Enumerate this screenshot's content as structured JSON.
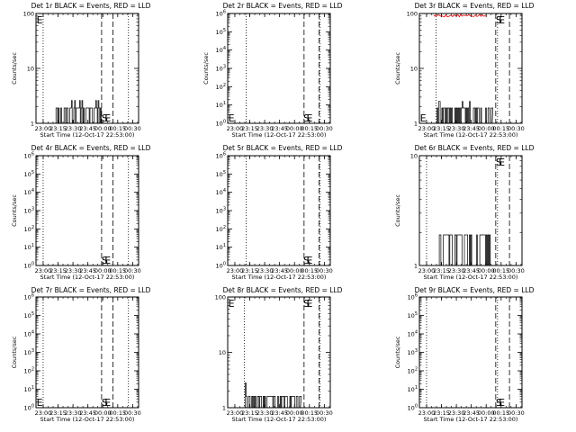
{
  "figure": {
    "background": "#ffffff",
    "event_color": "#000000",
    "lld_color": "#e00000"
  },
  "chart_data": [
    {
      "type": "line",
      "title": "Det 1r BLACK = Events, RED = LLD",
      "xlabel": "Start Time (12-Oct-17 22:53:00)",
      "ylabel": "Counts/sec",
      "xlim": [
        22.88,
        24.6
      ],
      "x_ticks": [
        23.0,
        23.25,
        23.5,
        23.75,
        24.0,
        24.25,
        24.5
      ],
      "x_tick_labels": [
        "23:00",
        "23:15",
        "23:30",
        "23:45",
        "00:00",
        "00:15",
        "00:30"
      ],
      "yscale": "log",
      "ylim": [
        1,
        100
      ],
      "y_tick_labels": [
        "1",
        "10",
        "100"
      ],
      "ylabel_show": true,
      "dotted_x": [
        23.0,
        24.43
      ],
      "dashed_x": [
        23.98,
        24.17
      ],
      "markers": [
        {
          "text": "E",
          "x": 22.89,
          "pos": "top"
        },
        {
          "text": "S",
          "x": 23.98,
          "pos": "bottom"
        },
        {
          "text": "E",
          "x": 24.03,
          "pos": "bottom"
        }
      ],
      "events": {
        "x_start": 23.16,
        "x_end": 23.97,
        "seed": 11,
        "base": 1.9,
        "high": 2.6,
        "high_rate": 0.06
      },
      "lld": null
    },
    {
      "type": "line",
      "title": "Det 2r BLACK = Events, RED = LLD",
      "xlabel": "Start Time (12-Oct-17 22:53:00)",
      "ylabel": "Counts/sec",
      "xlim": [
        22.88,
        24.6
      ],
      "x_ticks": [
        23.0,
        23.25,
        23.5,
        23.75,
        24.0,
        24.25,
        24.5
      ],
      "x_tick_labels": [
        "23:00",
        "23:15",
        "23:30",
        "23:45",
        "00:00",
        "00:15",
        "00:30"
      ],
      "yscale": "log",
      "ylim": [
        1,
        1000000
      ],
      "y_tick_labels": [
        "10^0",
        "10^1",
        "10^2",
        "10^3",
        "10^4",
        "10^5",
        "10^6"
      ],
      "ylabel_show": true,
      "dotted_x": [
        23.19,
        24.43
      ],
      "dashed_x": [
        24.16,
        24.41
      ],
      "markers": [
        {
          "text": "E",
          "x": 22.89,
          "pos": "bottom"
        },
        {
          "text": "S",
          "x": 24.15,
          "pos": "bottom"
        },
        {
          "text": "E",
          "x": 24.2,
          "pos": "bottom"
        }
      ],
      "events": null,
      "lld": null
    },
    {
      "type": "line",
      "title": "Det 3r BLACK = Events, RED = LLD",
      "xlabel": "Start Time (12-Oct-17 22:53:00)",
      "ylabel": "Counts/sec",
      "xlim": [
        22.88,
        24.6
      ],
      "x_ticks": [
        23.0,
        23.25,
        23.5,
        23.75,
        24.0,
        24.25,
        24.5
      ],
      "x_tick_labels": [
        "23:00",
        "23:15",
        "23:30",
        "23:45",
        "00:00",
        "00:15",
        "00:30"
      ],
      "yscale": "log",
      "ylim": [
        1,
        100
      ],
      "y_tick_labels": [
        "1",
        "10",
        "100"
      ],
      "ylabel_show": true,
      "dotted_x": [
        23.16,
        24.19
      ],
      "dashed_x": [
        24.16,
        24.39
      ],
      "markers": [
        {
          "text": "E",
          "x": 22.89,
          "pos": "bottom"
        },
        {
          "text": "S",
          "x": 24.16,
          "pos": "top"
        },
        {
          "text": "E",
          "x": 24.21,
          "pos": "top"
        }
      ],
      "events": {
        "x_start": 23.16,
        "x_end": 24.1,
        "seed": 37,
        "base": 1.9,
        "high": 2.5,
        "high_rate": 0.05
      },
      "lld": {
        "x_start": 23.12,
        "x_end": 24.02,
        "level": 98,
        "seed": 5
      }
    },
    {
      "type": "line",
      "title": "Det 4r BLACK = Events, RED = LLD",
      "xlabel": "Start Time (12-Oct-17 22:53:00)",
      "ylabel": "Counts/sec",
      "xlim": [
        22.88,
        24.6
      ],
      "x_ticks": [
        23.0,
        23.25,
        23.5,
        23.75,
        24.0,
        24.25,
        24.5
      ],
      "x_tick_labels": [
        "23:00",
        "23:15",
        "23:30",
        "23:45",
        "00:00",
        "00:15",
        "00:30"
      ],
      "yscale": "log",
      "ylim": [
        1,
        1000000
      ],
      "y_tick_labels": [
        "10^0",
        "10^1",
        "10^2",
        "10^3",
        "10^4",
        "10^5",
        "10^6"
      ],
      "ylabel_show": true,
      "dotted_x": [
        23.0,
        24.43
      ],
      "dashed_x": [
        23.98,
        24.17
      ],
      "markers": [
        {
          "text": "S",
          "x": 23.98,
          "pos": "bottom"
        },
        {
          "text": "E",
          "x": 24.03,
          "pos": "bottom"
        }
      ],
      "events": null,
      "lld": null
    },
    {
      "type": "line",
      "title": "Det 5r BLACK = Events, RED = LLD",
      "xlabel": "Start Time (12-Oct-17 22:53:00)",
      "ylabel": "Counts/sec",
      "xlim": [
        22.88,
        24.6
      ],
      "x_ticks": [
        23.0,
        23.25,
        23.5,
        23.75,
        24.0,
        24.25,
        24.5
      ],
      "x_tick_labels": [
        "23:00",
        "23:15",
        "23:30",
        "23:45",
        "00:00",
        "00:15",
        "00:30"
      ],
      "yscale": "log",
      "ylim": [
        1,
        1000000
      ],
      "y_tick_labels": [
        "10^0",
        "10^1",
        "10^2",
        "10^3",
        "10^4",
        "10^5",
        "10^6"
      ],
      "ylabel_show": false,
      "dotted_x": [
        23.19,
        24.43
      ],
      "dashed_x": [
        24.16,
        24.41
      ],
      "markers": [
        {
          "text": "S",
          "x": 24.15,
          "pos": "bottom"
        },
        {
          "text": "E",
          "x": 24.2,
          "pos": "bottom"
        }
      ],
      "events": null,
      "lld": null
    },
    {
      "type": "line",
      "title": "Det 6r BLACK = Events, RED = LLD",
      "xlabel": "Start Time (12-Oct-17 22:53:00)",
      "ylabel": "Counts/sec",
      "xlim": [
        22.88,
        24.6
      ],
      "x_ticks": [
        23.0,
        23.25,
        23.5,
        23.75,
        24.0,
        24.25,
        24.5
      ],
      "x_tick_labels": [
        "23:00",
        "23:15",
        "23:30",
        "23:45",
        "00:00",
        "00:15",
        "00:30"
      ],
      "yscale": "log",
      "ylim": [
        1,
        10
      ],
      "y_tick_labels": [
        "1",
        "10"
      ],
      "ylabel_show": true,
      "dotted_x": [
        23.0,
        24.19
      ],
      "dashed_x": [
        24.16,
        24.39
      ],
      "markers": [
        {
          "text": "S",
          "x": 24.16,
          "pos": "top"
        },
        {
          "text": "E",
          "x": 24.21,
          "pos": "top"
        }
      ],
      "events": {
        "x_start": 23.2,
        "x_end": 24.1,
        "seed": 73,
        "base": 1.9,
        "high": 2.0,
        "high_rate": 0.0
      },
      "lld": null
    },
    {
      "type": "line",
      "title": "Det 7r BLACK = Events, RED = LLD",
      "xlabel": "Start Time (12-Oct-17 22:53:00)",
      "ylabel": "Counts/sec",
      "xlim": [
        22.88,
        24.6
      ],
      "x_ticks": [
        23.0,
        23.25,
        23.5,
        23.75,
        24.0,
        24.25,
        24.5
      ],
      "x_tick_labels": [
        "23:00",
        "23:15",
        "23:30",
        "23:45",
        "00:00",
        "00:15",
        "00:30"
      ],
      "yscale": "log",
      "ylim": [
        1,
        1000000
      ],
      "y_tick_labels": [
        "10^0",
        "10^1",
        "10^2",
        "10^3",
        "10^4",
        "10^5",
        "10^6"
      ],
      "ylabel_show": true,
      "dotted_x": [
        23.0,
        24.43
      ],
      "dashed_x": [
        23.98,
        24.17
      ],
      "markers": [
        {
          "text": "E",
          "x": 22.89,
          "pos": "bottom"
        },
        {
          "text": "S",
          "x": 23.98,
          "pos": "bottom"
        },
        {
          "text": "E",
          "x": 24.03,
          "pos": "bottom"
        }
      ],
      "events": null,
      "lld": null
    },
    {
      "type": "line",
      "title": "Det 8r BLACK = Events, RED = LLD",
      "xlabel": "Start Time (12-Oct-17 22:53:00)",
      "ylabel": "Counts/sec",
      "xlim": [
        22.88,
        24.6
      ],
      "x_ticks": [
        23.0,
        23.25,
        23.5,
        23.75,
        24.0,
        24.25,
        24.5
      ],
      "x_tick_labels": [
        "23:00",
        "23:15",
        "23:30",
        "23:45",
        "00:00",
        "00:15",
        "00:30"
      ],
      "yscale": "log",
      "ylim": [
        1,
        100
      ],
      "y_tick_labels": [
        "1",
        "10",
        "100"
      ],
      "ylabel_show": false,
      "dotted_x": [
        23.16,
        24.43
      ],
      "dashed_x": [
        24.16,
        24.41
      ],
      "markers": [
        {
          "text": "E",
          "x": 22.89,
          "pos": "top"
        },
        {
          "text": "S",
          "x": 24.15,
          "pos": "top"
        },
        {
          "text": "E",
          "x": 24.2,
          "pos": "top"
        }
      ],
      "events": {
        "x_start": 23.16,
        "x_end": 24.1,
        "seed": 19,
        "base": 1.6,
        "high": 2.8,
        "high_rate": 0.02
      },
      "lld": null
    },
    {
      "type": "line",
      "title": "Det 9r BLACK = Events, RED = LLD",
      "xlabel": "Start Time (12-Oct-17 22:53:00)",
      "ylabel": "Counts/sec",
      "xlim": [
        22.88,
        24.6
      ],
      "x_ticks": [
        23.0,
        23.25,
        23.5,
        23.75,
        24.0,
        24.25,
        24.5
      ],
      "x_tick_labels": [
        "23:00",
        "23:15",
        "23:30",
        "23:45",
        "00:00",
        "00:15",
        "00:30"
      ],
      "yscale": "log",
      "ylim": [
        1,
        1000000
      ],
      "y_tick_labels": [
        "10^0",
        "10^1",
        "10^2",
        "10^3",
        "10^4",
        "10^5",
        "10^6"
      ],
      "ylabel_show": true,
      "dotted_x": [
        23.0,
        24.19
      ],
      "dashed_x": [
        24.16,
        24.39
      ],
      "markers": [
        {
          "text": "S",
          "x": 24.16,
          "pos": "bottom"
        },
        {
          "text": "E",
          "x": 24.21,
          "pos": "bottom"
        }
      ],
      "events": null,
      "lld": null
    }
  ]
}
